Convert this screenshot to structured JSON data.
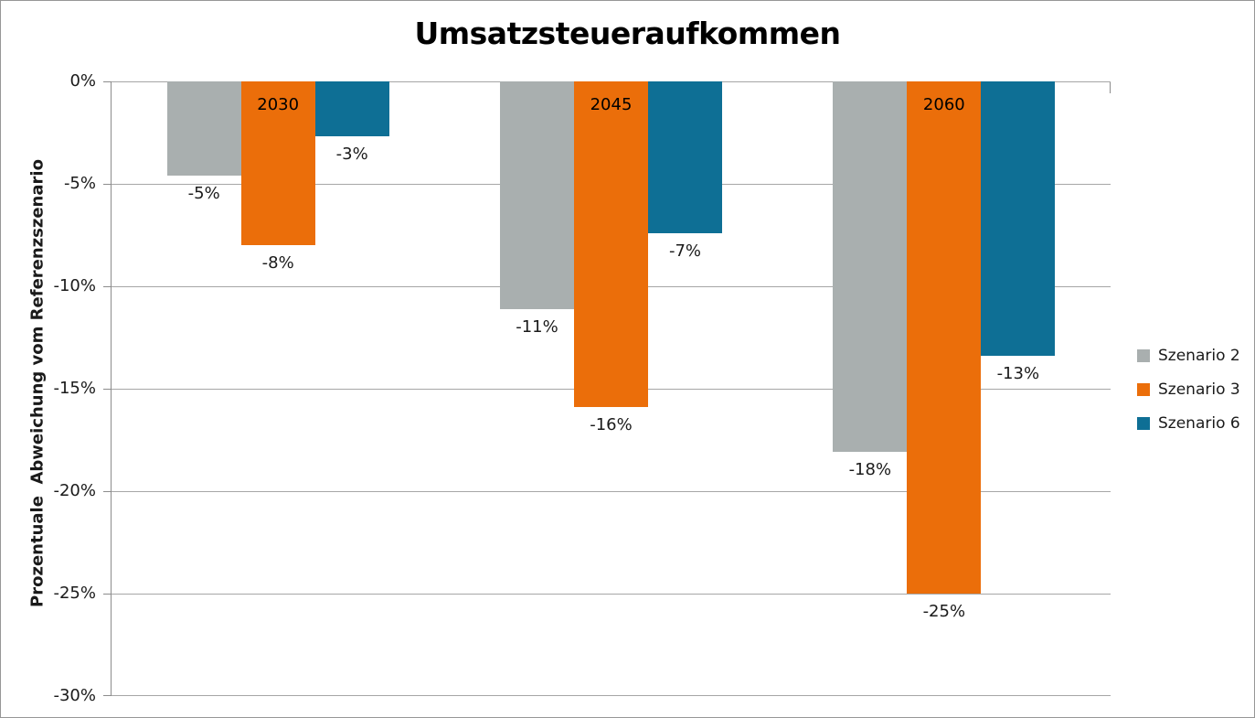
{
  "page": {
    "background": "#ffffff",
    "border_color": "#979797"
  },
  "chart_data": {
    "type": "bar",
    "title": "Umsatzsteueraufkommen",
    "ylabel": "Prozentuale  Abweichung vom Referenzszenario",
    "xlabel": "",
    "categories": [
      "2030",
      "2045",
      "2060"
    ],
    "series": [
      {
        "name": "Szenario 2",
        "color": "#A9AFAF",
        "values": [
          -5,
          -11,
          -18
        ],
        "labels": [
          "-5%",
          "-11%",
          "-18%"
        ],
        "bar_depth_pct": [
          -4.6,
          -11.1,
          -18.1
        ]
      },
      {
        "name": "Szenario 3",
        "color": "#EB6E0A",
        "values": [
          -8,
          -16,
          -25
        ],
        "labels": [
          "-8%",
          "-16%",
          "-25%"
        ],
        "bar_depth_pct": [
          -8.0,
          -15.9,
          -25.0
        ]
      },
      {
        "name": "Szenario 6",
        "color": "#0E6F95",
        "values": [
          -3,
          -7,
          -13
        ],
        "labels": [
          "-3%",
          "-7%",
          "-13%"
        ],
        "bar_depth_pct": [
          -2.7,
          -7.4,
          -13.4
        ]
      }
    ],
    "ylim": [
      0,
      -30
    ],
    "yticks": [
      "0%",
      "-5%",
      "-10%",
      "-15%",
      "-20%",
      "-25%",
      "-30%"
    ],
    "grid": true,
    "legend_position": "right",
    "category_labels_inside_bars": true,
    "gridline_color": "#A6A6A6",
    "axis_color": "#8C8C8C",
    "text_color": "#1A1A1A"
  }
}
